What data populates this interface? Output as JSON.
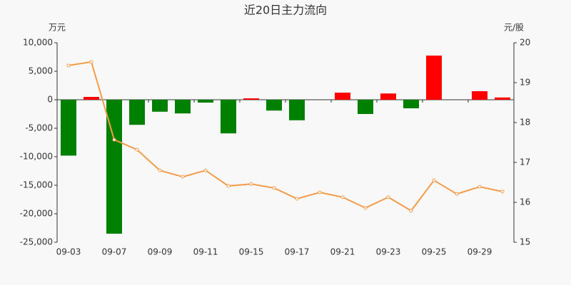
{
  "chart_data": {
    "type": "bar-line",
    "title": "近20日主力流向",
    "y_unit": "万元",
    "y2_unit": "元/股",
    "categories": [
      "09-03",
      null,
      "09-07",
      null,
      "09-09",
      null,
      "09-11",
      null,
      "09-15",
      null,
      "09-17",
      null,
      "09-21",
      null,
      "09-23",
      null,
      "09-25",
      null,
      "09-29",
      null
    ],
    "series": [
      {
        "type": "bar",
        "positive_color": "#ff0000",
        "negative_color": "#008000",
        "values": [
          -9800,
          500,
          -23500,
          -4400,
          -2100,
          -2400,
          -500,
          -5900,
          250,
          -1900,
          -3600,
          0,
          1250,
          -2500,
          1100,
          -1500,
          7750,
          0,
          1500,
          400
        ]
      },
      {
        "type": "line",
        "axis": "y2",
        "color": "#f39c4a",
        "values": [
          19.43,
          19.52,
          17.57,
          17.32,
          16.8,
          16.64,
          16.8,
          16.41,
          16.46,
          16.36,
          16.09,
          16.25,
          16.13,
          15.86,
          16.13,
          15.79,
          16.55,
          16.21,
          16.39,
          16.27
        ]
      }
    ],
    "ylim": [
      -25000,
      10000
    ],
    "yticks": [
      {
        "value": -25000,
        "label": "-25,000"
      },
      {
        "value": -20000,
        "label": "-20,000"
      },
      {
        "value": -15000,
        "label": "-15,000"
      },
      {
        "value": -10000,
        "label": "-10,000"
      },
      {
        "value": -5000,
        "label": "-5,000"
      },
      0,
      {
        "value": 5000,
        "label": "5,000"
      },
      {
        "value": 10000,
        "label": "10,000"
      }
    ],
    "y2lim": [
      15,
      20
    ],
    "y2ticks": [
      15,
      16,
      17,
      18,
      19,
      20
    ]
  }
}
